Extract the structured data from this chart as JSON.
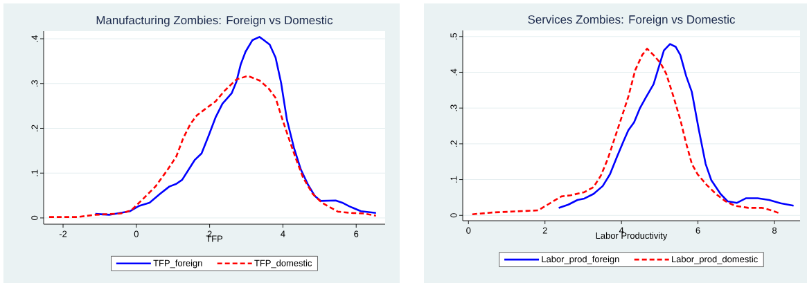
{
  "chart_data": [
    {
      "type": "line",
      "title": "Manufacturing Zombies: Foreign vs Domestic",
      "xlabel": "TFP",
      "xlim": [
        -2.53,
        6.79
      ],
      "ylim": [
        -0.014,
        0.417
      ],
      "xticks": [
        -2,
        0,
        2,
        4,
        6
      ],
      "yticks": [
        0,
        {
          "value": 0.1,
          "label": ".1"
        },
        {
          "value": 0.2,
          "label": ".2"
        },
        {
          "value": 0.3,
          "label": ".3"
        },
        {
          "value": 0.4,
          "label": ".4"
        }
      ],
      "grid": "y",
      "legend": "bottom",
      "series": [
        {
          "name": "TFP_foreign",
          "color": "#0000ff",
          "line_style": "solid",
          "x": [
            -1.12,
            -0.74,
            -0.17,
            0.08,
            0.36,
            0.65,
            0.9,
            1.09,
            1.25,
            1.59,
            1.78,
            1.97,
            2.16,
            2.35,
            2.6,
            2.73,
            2.85,
            2.98,
            3.17,
            3.36,
            3.48,
            3.64,
            3.8,
            3.95,
            4.11,
            4.3,
            4.49,
            4.68,
            4.87,
            5.03,
            5.44,
            5.62,
            5.81,
            6.13,
            6.54
          ],
          "values": [
            0.009,
            0.007,
            0.015,
            0.027,
            0.034,
            0.054,
            0.07,
            0.076,
            0.085,
            0.129,
            0.144,
            0.183,
            0.224,
            0.255,
            0.278,
            0.304,
            0.343,
            0.371,
            0.397,
            0.404,
            0.397,
            0.387,
            0.358,
            0.302,
            0.219,
            0.157,
            0.108,
            0.075,
            0.049,
            0.038,
            0.039,
            0.034,
            0.026,
            0.015,
            0.011
          ]
        },
        {
          "name": "TFP_domestic",
          "color": "#ff0000",
          "line_style": "dashed",
          "x": [
            -2.38,
            -1.62,
            -1.12,
            -0.42,
            -0.14,
            0.14,
            0.52,
            0.84,
            1.09,
            1.28,
            1.47,
            1.65,
            1.91,
            2.16,
            2.41,
            2.73,
            3.04,
            3.36,
            3.61,
            3.8,
            3.99,
            4.18,
            4.36,
            4.55,
            4.81,
            5.06,
            5.5,
            5.88,
            6.19,
            6.54
          ],
          "values": [
            0.002,
            0.002,
            0.007,
            0.01,
            0.017,
            0.039,
            0.07,
            0.106,
            0.137,
            0.178,
            0.209,
            0.229,
            0.245,
            0.26,
            0.284,
            0.309,
            0.317,
            0.307,
            0.289,
            0.268,
            0.219,
            0.173,
            0.131,
            0.09,
            0.054,
            0.034,
            0.014,
            0.011,
            0.01,
            0.005
          ]
        }
      ]
    },
    {
      "type": "line",
      "title": "Services Zombies: Foreign vs Domestic",
      "xlabel": "Labor Productivity",
      "xlim": [
        -0.15,
        8.67
      ],
      "ylim": [
        -0.015,
        0.517
      ],
      "xticks": [
        0,
        2,
        4,
        6,
        8
      ],
      "yticks": [
        0,
        {
          "value": 0.1,
          "label": ".1"
        },
        {
          "value": 0.2,
          "label": ".2"
        },
        {
          "value": 0.3,
          "label": ".3"
        },
        {
          "value": 0.4,
          "label": ".4"
        },
        {
          "value": 0.5,
          "label": ".5"
        }
      ],
      "grid": "y",
      "legend": "bottom",
      "series": [
        {
          "name": "Labor_prod_foreign",
          "color": "#0000ff",
          "line_style": "solid",
          "x": [
            2.36,
            2.61,
            2.85,
            3.03,
            3.27,
            3.51,
            3.7,
            3.88,
            4.06,
            4.18,
            4.33,
            4.48,
            4.63,
            4.84,
            4.96,
            5.11,
            5.27,
            5.42,
            5.54,
            5.69,
            5.84,
            6.02,
            6.2,
            6.35,
            6.59,
            6.78,
            7.02,
            7.26,
            7.56,
            7.86,
            8.16,
            8.5
          ],
          "values": [
            0.021,
            0.03,
            0.043,
            0.047,
            0.06,
            0.082,
            0.115,
            0.163,
            0.209,
            0.238,
            0.26,
            0.299,
            0.328,
            0.367,
            0.409,
            0.461,
            0.479,
            0.471,
            0.448,
            0.39,
            0.345,
            0.241,
            0.144,
            0.098,
            0.06,
            0.039,
            0.035,
            0.048,
            0.048,
            0.043,
            0.034,
            0.027
          ]
        },
        {
          "name": "Labor_prod_domestic",
          "color": "#ff0000",
          "line_style": "dashed",
          "x": [
            0.1,
            0.62,
            1.22,
            1.82,
            2.07,
            2.43,
            2.67,
            3.03,
            3.27,
            3.46,
            3.64,
            3.82,
            4.0,
            4.18,
            4.36,
            4.54,
            4.67,
            4.84,
            5.02,
            5.17,
            5.36,
            5.54,
            5.69,
            5.84,
            5.99,
            6.23,
            6.47,
            6.71,
            6.96,
            7.32,
            7.68,
            7.92,
            8.13
          ],
          "values": [
            0.003,
            0.008,
            0.011,
            0.014,
            0.03,
            0.053,
            0.056,
            0.065,
            0.079,
            0.111,
            0.157,
            0.215,
            0.273,
            0.332,
            0.406,
            0.448,
            0.466,
            0.448,
            0.426,
            0.396,
            0.332,
            0.267,
            0.202,
            0.144,
            0.115,
            0.085,
            0.06,
            0.04,
            0.027,
            0.021,
            0.021,
            0.014,
            0.006
          ]
        }
      ]
    }
  ]
}
